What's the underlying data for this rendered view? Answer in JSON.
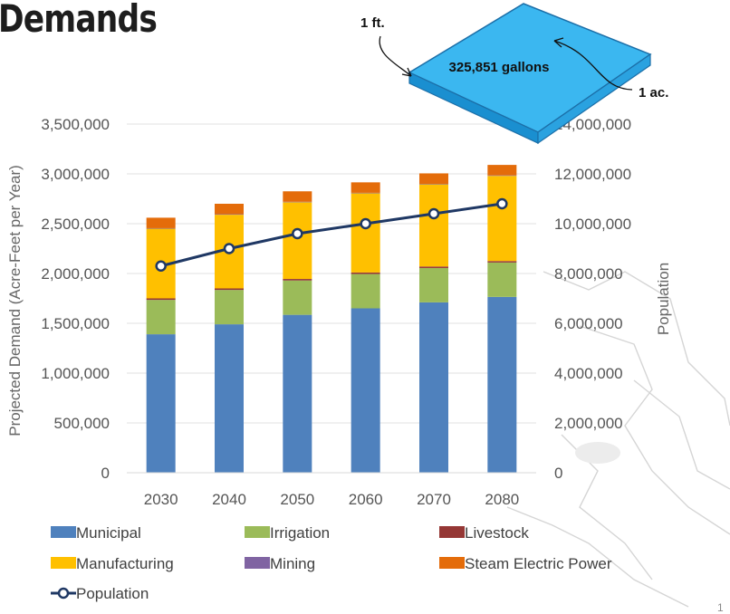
{
  "page": {
    "title": "Demands",
    "corner_mark": "1"
  },
  "callout": {
    "depth_label": "1 ft.",
    "area_label": "1 ac.",
    "volume_label": "325,851 gallons",
    "box_color": "#3bb7f0"
  },
  "chart_data": {
    "type": "bar",
    "stacked": true,
    "categories": [
      "2030",
      "2040",
      "2050",
      "2060",
      "2070",
      "2080"
    ],
    "ylabel": "Projected Demand (Acre-Feet per Year)",
    "y2label": "Population",
    "ylim": [
      0,
      3500000
    ],
    "y2lim": [
      0,
      14000000
    ],
    "yticks": [
      "0",
      "500,000",
      "1,000,000",
      "1,500,000",
      "2,000,000",
      "2,500,000",
      "3,000,000",
      "3,500,000"
    ],
    "y2ticks": [
      "0",
      "2,000,000",
      "4,000,000",
      "6,000,000",
      "8,000,000",
      "10,000,000",
      "12,000,000",
      "14,000,000"
    ],
    "grid": true,
    "legend_position": "bottom",
    "series": [
      {
        "name": "Municipal",
        "color": "#4f81bd",
        "values": [
          1390000,
          1490000,
          1585000,
          1650000,
          1710000,
          1765000
        ]
      },
      {
        "name": "Irrigation",
        "color": "#9bbb59",
        "values": [
          345000,
          345000,
          345000,
          345000,
          345000,
          345000
        ]
      },
      {
        "name": "Livestock",
        "color": "#953735",
        "values": [
          15000,
          15000,
          15000,
          15000,
          15000,
          15000
        ]
      },
      {
        "name": "Manufacturing",
        "color": "#ffc000",
        "values": [
          700000,
          740000,
          770000,
          795000,
          825000,
          855000
        ]
      },
      {
        "name": "Mining",
        "color": "#8064a2",
        "values": [
          5000,
          5000,
          5000,
          5000,
          5000,
          5000
        ]
      },
      {
        "name": "Steam Electric Power",
        "color": "#e46c0a",
        "values": [
          105000,
          105000,
          105000,
          105000,
          105000,
          105000
        ]
      }
    ],
    "line_series": {
      "name": "Population",
      "axis": "secondary",
      "color": "#1f3864",
      "values": [
        8300000,
        9000000,
        9600000,
        10000000,
        10400000,
        10800000
      ]
    }
  }
}
